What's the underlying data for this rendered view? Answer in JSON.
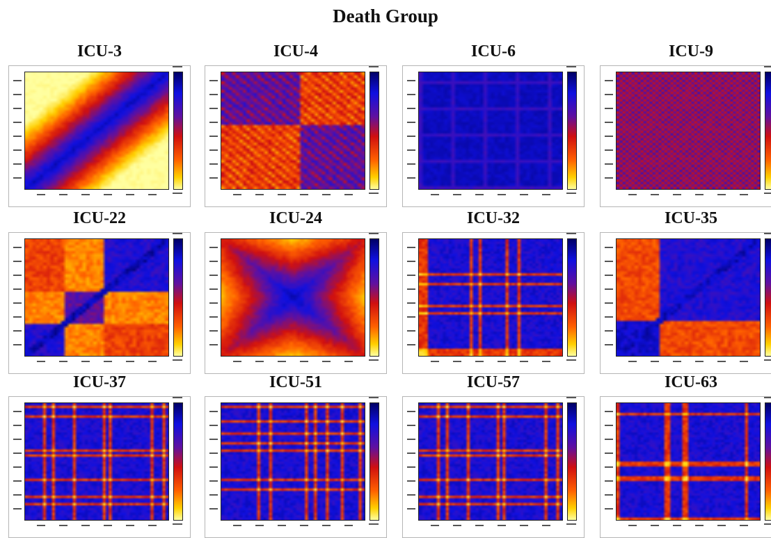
{
  "title": "Death Group",
  "colormap": [
    "#000066",
    "#1010e0",
    "#6010a0",
    "#d01010",
    "#ff6000",
    "#ffd000",
    "#ffffa0"
  ],
  "chart_data": [
    {
      "type": "heatmap",
      "title": "ICU-3",
      "pattern": "diagonal",
      "n": 40
    },
    {
      "type": "heatmap",
      "title": "ICU-4",
      "pattern": "blocks4",
      "n": 40
    },
    {
      "type": "heatmap",
      "title": "ICU-6",
      "pattern": "darkgrid",
      "n": 40
    },
    {
      "type": "heatmap",
      "title": "ICU-9",
      "pattern": "fine",
      "n": 48
    },
    {
      "type": "heatmap",
      "title": "ICU-22",
      "pattern": "blocks22",
      "n": 40
    },
    {
      "type": "heatmap",
      "title": "ICU-24",
      "pattern": "cross",
      "n": 40
    },
    {
      "type": "heatmap",
      "title": "ICU-32",
      "pattern": "stripes32",
      "n": 48
    },
    {
      "type": "heatmap",
      "title": "ICU-35",
      "pattern": "blocks35",
      "n": 40
    },
    {
      "type": "heatmap",
      "title": "ICU-37",
      "pattern": "stripes37",
      "n": 48
    },
    {
      "type": "heatmap",
      "title": "ICU-51",
      "pattern": "stripes51",
      "n": 48
    },
    {
      "type": "heatmap",
      "title": "ICU-57",
      "pattern": "stripes57",
      "n": 48
    },
    {
      "type": "heatmap",
      "title": "ICU-63",
      "pattern": "stripes63",
      "n": 48
    }
  ]
}
